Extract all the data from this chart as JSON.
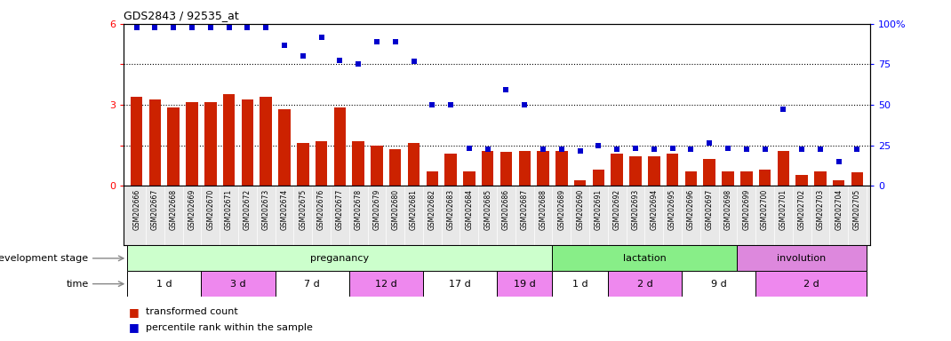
{
  "title": "GDS2843 / 92535_at",
  "samples": [
    "GSM202666",
    "GSM202667",
    "GSM202668",
    "GSM202669",
    "GSM202670",
    "GSM202671",
    "GSM202672",
    "GSM202673",
    "GSM202674",
    "GSM202675",
    "GSM202676",
    "GSM202677",
    "GSM202678",
    "GSM202679",
    "GSM202680",
    "GSM202681",
    "GSM202682",
    "GSM202683",
    "GSM202684",
    "GSM202685",
    "GSM202686",
    "GSM202687",
    "GSM202688",
    "GSM202689",
    "GSM202690",
    "GSM202691",
    "GSM202692",
    "GSM202693",
    "GSM202694",
    "GSM202695",
    "GSM202696",
    "GSM202697",
    "GSM202698",
    "GSM202699",
    "GSM202700",
    "GSM202701",
    "GSM202702",
    "GSM202703",
    "GSM202704",
    "GSM202705"
  ],
  "bar_values": [
    3.3,
    3.2,
    2.9,
    3.1,
    3.1,
    3.4,
    3.2,
    3.3,
    2.85,
    1.6,
    1.65,
    2.9,
    1.65,
    1.5,
    1.35,
    1.6,
    0.55,
    1.2,
    0.55,
    1.3,
    1.25,
    1.3,
    1.3,
    1.3,
    0.2,
    0.6,
    1.2,
    1.1,
    1.1,
    1.2,
    0.55,
    1.0,
    0.55,
    0.55,
    0.6,
    1.3,
    0.4,
    0.55,
    0.2,
    0.5
  ],
  "dot_values": [
    5.85,
    5.85,
    5.85,
    5.85,
    5.85,
    5.85,
    5.85,
    5.85,
    5.2,
    4.8,
    5.5,
    4.65,
    4.5,
    5.35,
    5.35,
    4.6,
    3.0,
    3.0,
    1.4,
    1.35,
    3.55,
    3.0,
    1.35,
    1.35,
    1.3,
    1.5,
    1.35,
    1.4,
    1.35,
    1.4,
    1.35,
    1.6,
    1.4,
    1.35,
    1.35,
    2.85,
    1.35,
    1.35,
    0.9,
    1.35
  ],
  "ylim_left": [
    0,
    6
  ],
  "yticks_left": [
    0,
    1.5,
    3.0,
    4.5,
    6.0
  ],
  "yticklabels_left": [
    "0",
    "",
    "3",
    "",
    "6"
  ],
  "yticks_right": [
    0,
    25,
    50,
    75,
    100
  ],
  "yticklabels_right": [
    "0",
    "25",
    "50",
    "75",
    "100%"
  ],
  "bar_color": "#cc2200",
  "dot_color": "#0000cc",
  "gridline_y": [
    1.5,
    3.0,
    4.5
  ],
  "development_stages": [
    {
      "label": "preganancy",
      "start": 0,
      "end": 23,
      "color": "#ccffcc"
    },
    {
      "label": "lactation",
      "start": 23,
      "end": 33,
      "color": "#88ee88"
    },
    {
      "label": "involution",
      "start": 33,
      "end": 40,
      "color": "#dd88dd"
    }
  ],
  "time_periods": [
    {
      "label": "1 d",
      "start": 0,
      "end": 4,
      "color": "#ffffff"
    },
    {
      "label": "3 d",
      "start": 4,
      "end": 8,
      "color": "#ee88ee"
    },
    {
      "label": "7 d",
      "start": 8,
      "end": 12,
      "color": "#ffffff"
    },
    {
      "label": "12 d",
      "start": 12,
      "end": 16,
      "color": "#ee88ee"
    },
    {
      "label": "17 d",
      "start": 16,
      "end": 20,
      "color": "#ffffff"
    },
    {
      "label": "19 d",
      "start": 20,
      "end": 23,
      "color": "#ee88ee"
    },
    {
      "label": "1 d",
      "start": 23,
      "end": 26,
      "color": "#ffffff"
    },
    {
      "label": "2 d",
      "start": 26,
      "end": 30,
      "color": "#ee88ee"
    },
    {
      "label": "9 d",
      "start": 30,
      "end": 34,
      "color": "#ffffff"
    },
    {
      "label": "2 d",
      "start": 34,
      "end": 40,
      "color": "#ee88ee"
    }
  ],
  "stage_label": "development stage",
  "time_label": "time",
  "legend_bar": "transformed count",
  "legend_dot": "percentile rank within the sample",
  "tick_bg_color": "#e8e8e8",
  "arrow_color": "#888888"
}
